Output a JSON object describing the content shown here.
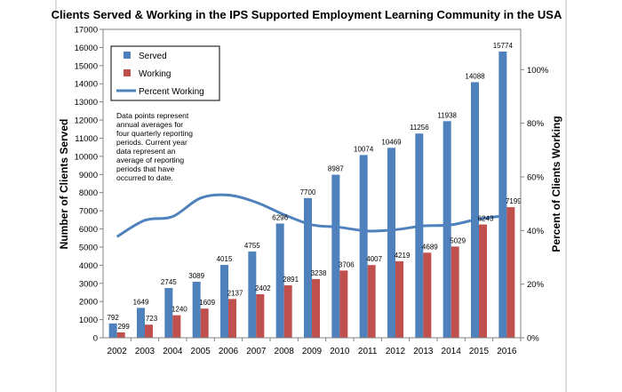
{
  "chart_data": {
    "type": "bar",
    "title": "Clients Served & Working in the IPS Supported Employment Learning Community in the USA",
    "ylabel": "Number of Clients Served",
    "y2label": "Percent of Clients Working",
    "ylim": [
      0,
      17000
    ],
    "y2lim": [
      0,
      115
    ],
    "yticks": [
      "0",
      "1000",
      "2000",
      "3000",
      "4000",
      "5000",
      "6000",
      "7000",
      "8000",
      "9000",
      "10000",
      "11000",
      "12000",
      "13000",
      "14000",
      "15000",
      "16000",
      "17000"
    ],
    "y2ticks": [
      "0%",
      "20%",
      "40%",
      "60%",
      "80%",
      "100%"
    ],
    "categories": [
      "2002",
      "2003",
      "2004",
      "2005",
      "2006",
      "2007",
      "2008",
      "2009",
      "2010",
      "2011",
      "2012",
      "2013",
      "2014",
      "2015",
      "2016"
    ],
    "series": [
      {
        "name": "Served",
        "type": "bar",
        "color": "#4F81BD",
        "values": [
          792,
          1649,
          2745,
          3089,
          4015,
          4755,
          6296,
          7700,
          8987,
          10074,
          10469,
          11256,
          11938,
          14088,
          15774
        ]
      },
      {
        "name": "Working",
        "type": "bar",
        "color": "#C0504D",
        "values": [
          299,
          723,
          1240,
          1609,
          2137,
          2402,
          2891,
          3238,
          3706,
          4007,
          4219,
          4689,
          5029,
          6243,
          7199
        ]
      },
      {
        "name": "Percent Working",
        "type": "line",
        "axis": "right",
        "color": "#4F81BD",
        "values": [
          37.7,
          43.8,
          45.2,
          52.1,
          53.2,
          50.5,
          45.9,
          42.1,
          41.2,
          39.8,
          40.3,
          41.7,
          42.1,
          44.3,
          45.6
        ]
      }
    ],
    "legend_position": "top-left",
    "grid": false,
    "annotation": [
      "Data points represent",
      "annual averages for",
      "four quarterly reporting",
      "periods.  Current year",
      "data represent an",
      "average of reporting",
      "periods that have",
      "occurred to date."
    ]
  }
}
